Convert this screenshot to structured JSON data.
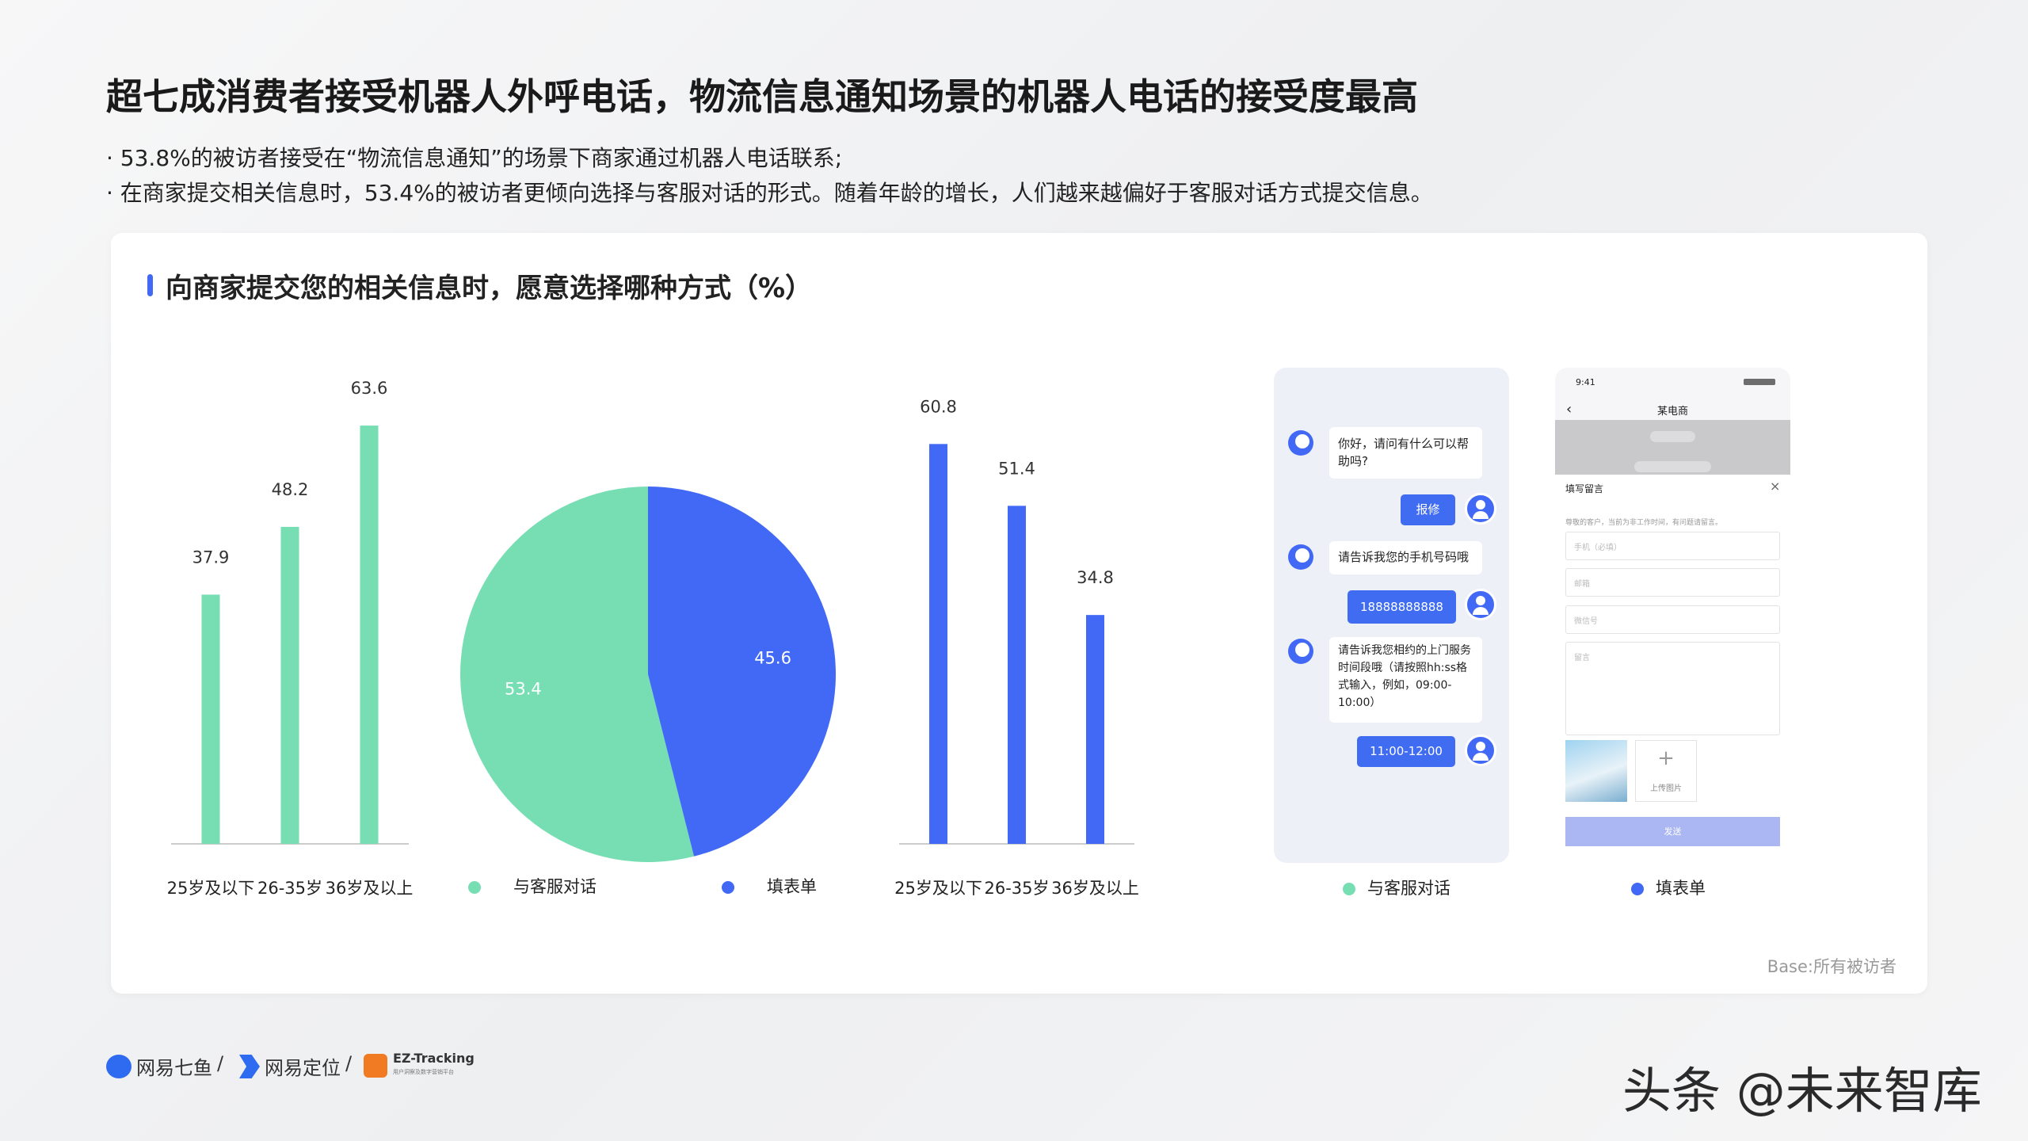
{
  "header": {
    "title": "超七成消费者接受机器人外呼电话，物流信息通知场景的机器人电话的接受度最高",
    "bullets": [
      "· 53.8%的被访者接受在“物流信息通知”的场景下商家通过机器人电话联系;",
      "· 在商家提交相关信息时，53.4%的被访者更倾向选择与客服对话的形式。随着年龄的增长，人们越来越偏好于客服对话方式提交信息。"
    ]
  },
  "panel": {
    "title": "向商家提交您的相关信息时，愿意选择哪种方式（%）",
    "base": "Base:所有被访者"
  },
  "chart_data": [
    {
      "type": "bar",
      "categories": [
        "25岁及以下",
        "26-35岁",
        "36岁及以上"
      ],
      "values": [
        37.9,
        48.2,
        63.6
      ],
      "color": "#77deb3"
    },
    {
      "type": "pie",
      "categories": [
        "与客服对话",
        "填表单"
      ],
      "values": [
        53.4,
        45.6
      ],
      "colors": [
        "#77deb3",
        "#4169f5"
      ]
    },
    {
      "type": "bar",
      "categories": [
        "25岁及以下",
        "26-35岁",
        "36岁及以上"
      ],
      "values": [
        60.8,
        51.4,
        34.8
      ],
      "color": "#4169f5"
    }
  ],
  "chat_mockup": {
    "bot_messages": [
      "你好，请问有什么可以帮助吗?",
      "请告诉我您的手机号码哦",
      "请告诉我您相约的上门服务时间段哦（请按照hh:ss格式输入，例如，09:00-10:00）"
    ],
    "user_messages": [
      "报修",
      "18888888888",
      "11:00-12:00"
    ]
  },
  "form_mockup": {
    "time": "9:41",
    "shop": "某电商",
    "title": "填写留言",
    "notice": "尊敬的客户，当前为非工作时间，有问题请留言。",
    "fields": [
      "手机（必填）",
      "邮箱",
      "微信号",
      "留言"
    ],
    "upload": "上传图片",
    "submit": "发送"
  },
  "footer": {
    "brands": [
      "网易七鱼",
      "网易定位",
      "EZ-Tracking"
    ],
    "separators": [
      "/",
      "/"
    ],
    "ez_subtitle": "用户洞察及数字营销平台",
    "watermark": "头条 @未来智库"
  }
}
